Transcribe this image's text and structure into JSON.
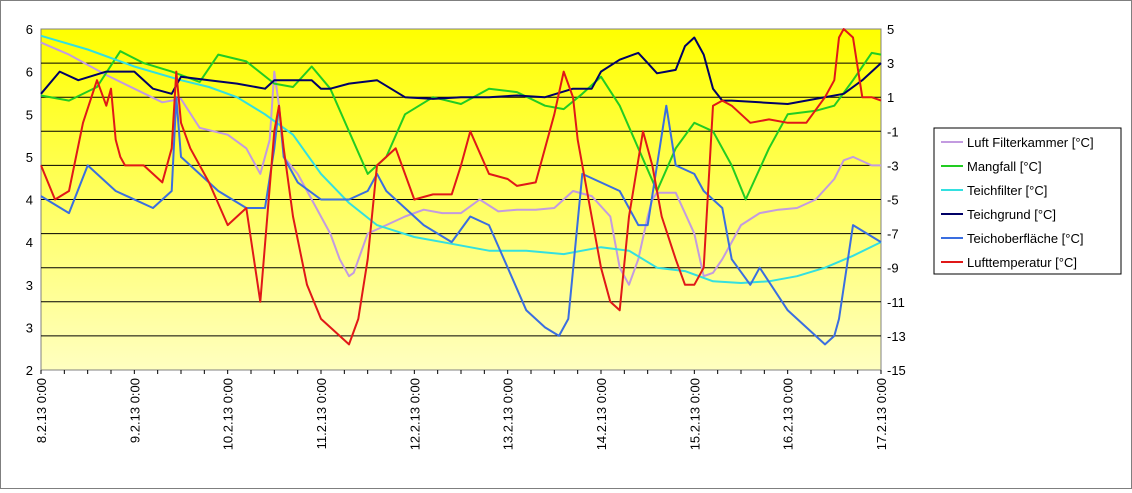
{
  "chart_data": {
    "type": "line",
    "title": "",
    "xlabel": "",
    "ylabel": "",
    "x_ticks": [
      "8.2.13 0:00",
      "9.2.13 0:00",
      "10.2.13 0:00",
      "11.2.13 0:00",
      "12.2.13 0:00",
      "13.2.13 0:00",
      "14.2.13 0:00",
      "15.2.13 0:00",
      "16.2.13 0:00",
      "17.2.13 0:00"
    ],
    "xlim": [
      0,
      9
    ],
    "y_left_ticks": [
      "2",
      "3",
      "3",
      "4",
      "4",
      "5",
      "5",
      "6",
      "6"
    ],
    "y_left_lim": [
      2,
      6
    ],
    "y_right_ticks": [
      "-15",
      "-13",
      "-11",
      "-9",
      "-7",
      "-5",
      "-3",
      "-1",
      "1",
      "3",
      "5"
    ],
    "y_right_lim": [
      -15,
      5
    ],
    "grid": true,
    "legend_position": "right",
    "background_gradient": [
      "#ffff00",
      "#ffffc0"
    ],
    "series": [
      {
        "name": "Luft Filterkammer [°C]",
        "axis": "right",
        "color": "#c39be0",
        "x": [
          0,
          0.3,
          0.7,
          1.0,
          1.3,
          1.5,
          1.7,
          2.0,
          2.2,
          2.35,
          2.45,
          2.5,
          2.55,
          2.6,
          2.75,
          2.9,
          3.1,
          3.2,
          3.3,
          3.35,
          3.5,
          3.7,
          3.9,
          4.1,
          4.3,
          4.5,
          4.7,
          4.9,
          5.1,
          5.3,
          5.5,
          5.7,
          5.9,
          6.1,
          6.2,
          6.3,
          6.4,
          6.5,
          6.55,
          6.6,
          6.8,
          7.0,
          7.1,
          7.2,
          7.3,
          7.4,
          7.5,
          7.7,
          7.9,
          8.1,
          8.3,
          8.5,
          8.6,
          8.7,
          8.9,
          9.0
        ],
        "y": [
          4.2,
          3.5,
          2.3,
          1.5,
          0.7,
          0.9,
          -0.8,
          -1.2,
          -2.0,
          -3.5,
          -1.5,
          2.5,
          0.5,
          -2.5,
          -3.5,
          -5.0,
          -7.0,
          -8.5,
          -9.5,
          -9.3,
          -7.0,
          -6.5,
          -6.0,
          -5.6,
          -5.8,
          -5.8,
          -5.0,
          -5.7,
          -5.6,
          -5.6,
          -5.5,
          -4.5,
          -4.8,
          -6.0,
          -9.0,
          -10.0,
          -8.5,
          -6.0,
          -5.0,
          -4.6,
          -4.6,
          -7.0,
          -9.5,
          -9.3,
          -8.5,
          -7.5,
          -6.5,
          -5.8,
          -5.6,
          -5.5,
          -5.0,
          -3.8,
          -2.7,
          -2.5,
          -3.0,
          -3.0
        ]
      },
      {
        "name": "Mangfall [°C]",
        "axis": "right",
        "color": "#22cc22",
        "x": [
          0,
          0.3,
          0.6,
          0.85,
          1.1,
          1.4,
          1.7,
          1.9,
          2.2,
          2.5,
          2.7,
          2.9,
          3.1,
          3.3,
          3.5,
          3.7,
          3.9,
          4.2,
          4.5,
          4.8,
          5.1,
          5.4,
          5.6,
          5.8,
          6.0,
          6.2,
          6.4,
          6.6,
          6.8,
          7.0,
          7.2,
          7.4,
          7.55,
          7.8,
          8.0,
          8.3,
          8.5,
          8.7,
          8.9,
          9.0
        ],
        "y": [
          1.1,
          0.8,
          1.6,
          3.7,
          3.0,
          2.5,
          1.9,
          3.5,
          3.1,
          1.8,
          1.6,
          2.8,
          1.5,
          -1.0,
          -3.5,
          -2.5,
          0.0,
          1.0,
          0.6,
          1.5,
          1.3,
          0.5,
          0.3,
          1.2,
          2.2,
          0.5,
          -2.0,
          -4.5,
          -2.0,
          -0.5,
          -1.0,
          -3.0,
          -5.0,
          -2.0,
          0.0,
          0.2,
          0.5,
          2.0,
          3.6,
          3.5
        ]
      },
      {
        "name": "Teichfilter [°C]",
        "axis": "right",
        "color": "#33e0e0",
        "x": [
          0,
          0.5,
          1.0,
          1.5,
          1.8,
          2.1,
          2.4,
          2.7,
          3.0,
          3.3,
          3.6,
          4.0,
          4.4,
          4.8,
          5.2,
          5.6,
          6.0,
          6.3,
          6.6,
          6.9,
          7.2,
          7.5,
          7.8,
          8.1,
          8.4,
          8.7,
          9.0
        ],
        "y": [
          4.6,
          3.8,
          2.8,
          2.0,
          1.6,
          1.0,
          0.0,
          -1.2,
          -3.5,
          -5.2,
          -6.5,
          -7.2,
          -7.6,
          -8.0,
          -8.0,
          -8.2,
          -7.8,
          -8.0,
          -9.0,
          -9.2,
          -9.8,
          -9.9,
          -9.8,
          -9.5,
          -9.0,
          -8.3,
          -7.5
        ]
      },
      {
        "name": "Teichgrund [°C]",
        "axis": "right",
        "color": "#000066",
        "x": [
          0,
          0.2,
          0.4,
          0.7,
          1.0,
          1.2,
          1.4,
          1.5,
          1.8,
          2.1,
          2.4,
          2.5,
          2.6,
          2.9,
          3.0,
          3.1,
          3.3,
          3.6,
          3.9,
          4.2,
          4.5,
          4.8,
          5.1,
          5.4,
          5.7,
          5.9,
          6.0,
          6.2,
          6.4,
          6.5,
          6.6,
          6.7,
          6.8,
          6.9,
          7.0,
          7.1,
          7.2,
          7.3,
          7.4,
          7.7,
          8.0,
          8.3,
          8.6,
          8.8,
          9.0
        ],
        "y": [
          1.2,
          2.5,
          2.0,
          2.5,
          2.5,
          1.5,
          1.2,
          2.2,
          2.0,
          1.8,
          1.5,
          2.0,
          2.0,
          2.0,
          1.5,
          1.5,
          1.8,
          2.0,
          1.0,
          0.9,
          1.0,
          1.0,
          1.1,
          1.0,
          1.5,
          1.5,
          2.5,
          3.2,
          3.6,
          3.0,
          2.4,
          2.5,
          2.6,
          4.0,
          4.5,
          3.5,
          1.5,
          0.8,
          0.8,
          0.7,
          0.6,
          0.9,
          1.2,
          2.0,
          3.0
        ]
      },
      {
        "name": "Teichoberfläche [°C]",
        "axis": "right",
        "color": "#3a6ee0",
        "x": [
          0,
          0.3,
          0.5,
          0.8,
          1.2,
          1.4,
          1.45,
          1.5,
          1.6,
          1.9,
          2.2,
          2.4,
          2.5,
          2.55,
          2.6,
          2.75,
          3.0,
          3.3,
          3.5,
          3.6,
          3.7,
          4.1,
          4.4,
          4.6,
          4.8,
          5.0,
          5.2,
          5.4,
          5.55,
          5.65,
          5.8,
          6.2,
          6.4,
          6.5,
          6.6,
          6.7,
          6.8,
          7.0,
          7.1,
          7.3,
          7.4,
          7.6,
          7.7,
          8.0,
          8.3,
          8.4,
          8.5,
          8.55,
          8.7,
          9.0
        ],
        "y": [
          -4.8,
          -5.8,
          -3.0,
          -4.5,
          -5.5,
          -4.5,
          1.0,
          -2.5,
          -3.0,
          -4.5,
          -5.5,
          -5.5,
          -2.0,
          0.5,
          -2.5,
          -4.0,
          -5.0,
          -5.0,
          -4.5,
          -3.5,
          -4.5,
          -6.5,
          -7.5,
          -6.0,
          -6.5,
          -9.0,
          -11.5,
          -12.5,
          -13.0,
          -12.0,
          -3.5,
          -4.5,
          -6.5,
          -6.5,
          -3.0,
          0.5,
          -3.0,
          -3.5,
          -4.5,
          -5.5,
          -8.5,
          -10.0,
          -9.0,
          -11.5,
          -13.0,
          -13.5,
          -13.0,
          -12.0,
          -6.5,
          -7.5
        ]
      },
      {
        "name": "Lufttemperatur [°C]",
        "axis": "right",
        "color": "#e01818",
        "x": [
          0,
          0.15,
          0.3,
          0.45,
          0.6,
          0.7,
          0.75,
          0.8,
          0.85,
          0.9,
          1.0,
          1.1,
          1.3,
          1.4,
          1.45,
          1.5,
          1.6,
          1.8,
          2.0,
          2.2,
          2.35,
          2.5,
          2.55,
          2.6,
          2.7,
          2.85,
          3.0,
          3.2,
          3.3,
          3.4,
          3.5,
          3.6,
          3.8,
          4.0,
          4.2,
          4.4,
          4.5,
          4.6,
          4.8,
          5.0,
          5.1,
          5.3,
          5.5,
          5.6,
          5.7,
          5.75,
          5.85,
          6.0,
          6.1,
          6.2,
          6.3,
          6.45,
          6.55,
          6.65,
          6.8,
          6.9,
          7.0,
          7.1,
          7.2,
          7.3,
          7.4,
          7.6,
          7.8,
          8.0,
          8.2,
          8.4,
          8.5,
          8.55,
          8.6,
          8.7,
          8.8,
          8.9,
          9.0
        ],
        "y": [
          -3.0,
          -5.0,
          -4.5,
          -0.5,
          2.0,
          0.5,
          1.5,
          -1.5,
          -2.5,
          -3.0,
          -3.0,
          -3.0,
          -4.0,
          -2.0,
          2.5,
          -0.5,
          -2.0,
          -4.0,
          -6.5,
          -5.5,
          -11.0,
          -1.0,
          0.5,
          -2.0,
          -6.0,
          -10.0,
          -12.0,
          -13.0,
          -13.5,
          -12.0,
          -8.5,
          -3.0,
          -2.0,
          -5.0,
          -4.7,
          -4.7,
          -3.0,
          -1.0,
          -3.5,
          -3.8,
          -4.2,
          -4.0,
          0.0,
          2.5,
          1.0,
          -1.5,
          -4.5,
          -9.0,
          -11.0,
          -11.5,
          -6.0,
          -1.0,
          -3.0,
          -6.0,
          -8.5,
          -10.0,
          -10.0,
          -9.0,
          0.5,
          0.8,
          0.5,
          -0.5,
          -0.3,
          -0.5,
          -0.5,
          1.0,
          2.0,
          4.5,
          5.0,
          4.5,
          1.0,
          1.0,
          0.8
        ]
      }
    ]
  }
}
